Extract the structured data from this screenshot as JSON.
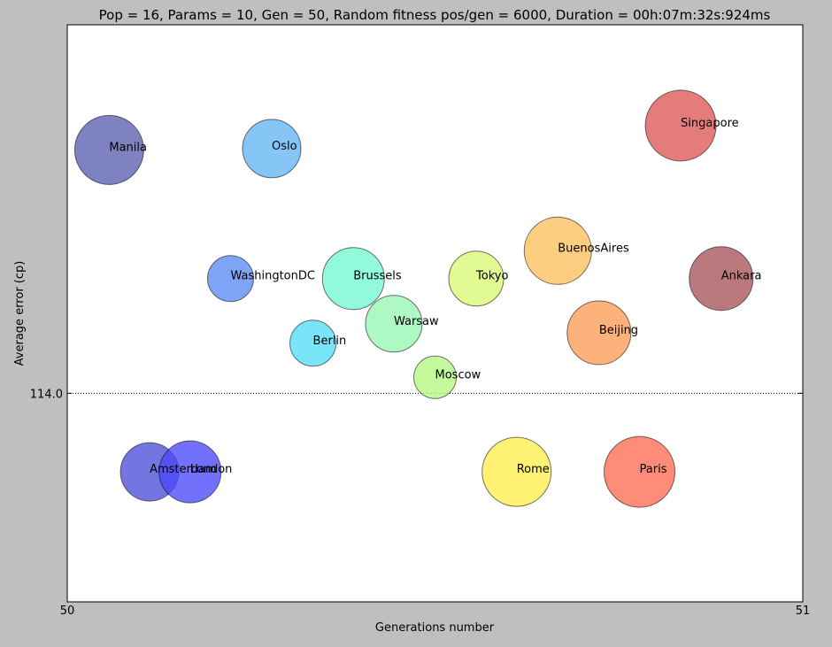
{
  "chart_data": {
    "type": "scatter",
    "title": "Pop = 16, Params = 10, Gen = 50, Random fitness pos/gen = 6000, Duration = 00h:07m:32s:924ms",
    "xlabel": "Generations number",
    "ylabel": "Average error (cp)",
    "xlim": [
      50,
      51
    ],
    "ylim": [
      111.0,
      119.3
    ],
    "x_ticks": [
      50,
      51
    ],
    "x_tick_labels": [
      "50",
      "51"
    ],
    "y_ticks": [
      114.0
    ],
    "y_tick_labels": [
      "114.0"
    ],
    "grid": true,
    "points": [
      {
        "name": "Manila",
        "x": 50.057,
        "y": 117.5,
        "size": 39,
        "color": "#5b5fb0"
      },
      {
        "name": "Oslo",
        "x": 50.278,
        "y": 117.52,
        "size": 33,
        "color": "#63b6f5"
      },
      {
        "name": "Singapore",
        "x": 50.834,
        "y": 117.85,
        "size": 40,
        "color": "#dd5757"
      },
      {
        "name": "BuenosAires",
        "x": 50.667,
        "y": 116.05,
        "size": 38,
        "color": "#fdc05d"
      },
      {
        "name": "WashingtonDC",
        "x": 50.222,
        "y": 115.65,
        "size": 26,
        "color": "#5b89f4"
      },
      {
        "name": "Brussels",
        "x": 50.389,
        "y": 115.65,
        "size": 35,
        "color": "#74f7d2"
      },
      {
        "name": "Tokyo",
        "x": 50.556,
        "y": 115.65,
        "size": 31,
        "color": "#daf874"
      },
      {
        "name": "Ankara",
        "x": 50.889,
        "y": 115.65,
        "size": 36,
        "color": "#a65558"
      },
      {
        "name": "Warsaw",
        "x": 50.444,
        "y": 115.0,
        "size": 32,
        "color": "#97f6b3"
      },
      {
        "name": "Beijing",
        "x": 50.723,
        "y": 114.87,
        "size": 36,
        "color": "#fd9b56"
      },
      {
        "name": "Berlin",
        "x": 50.334,
        "y": 114.72,
        "size": 26,
        "color": "#52dff6"
      },
      {
        "name": "Moscow",
        "x": 50.5,
        "y": 114.23,
        "size": 24,
        "color": "#b3f87f"
      },
      {
        "name": "Amsterdam",
        "x": 50.112,
        "y": 112.87,
        "size": 33,
        "color": "#4b4fd8"
      },
      {
        "name": "London",
        "x": 50.167,
        "y": 112.87,
        "size": 35,
        "color": "#4a49fa"
      },
      {
        "name": "Rome",
        "x": 50.611,
        "y": 112.87,
        "size": 39,
        "color": "#feed4d"
      },
      {
        "name": "Paris",
        "x": 50.778,
        "y": 112.87,
        "size": 40,
        "color": "#fe6b53"
      }
    ]
  }
}
